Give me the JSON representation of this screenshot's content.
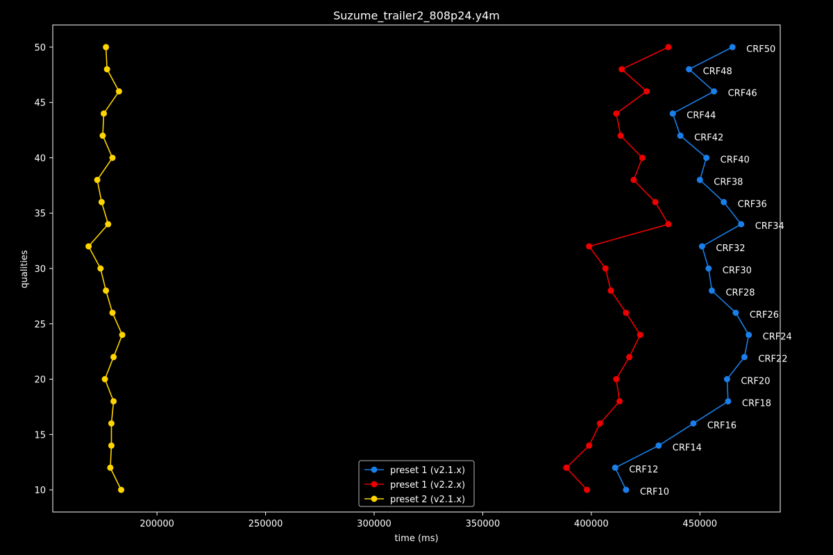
{
  "chart_data": {
    "type": "line",
    "title": "Suzume_trailer2_808p24.y4m",
    "xlabel": "time (ms)",
    "ylabel": "qualities",
    "xlim": [
      152000,
      487000
    ],
    "ylim": [
      8,
      52
    ],
    "xticks": [
      200000,
      250000,
      300000,
      350000,
      400000,
      450000
    ],
    "xtick_labels": [
      "200000",
      "250000",
      "300000",
      "350000",
      "400000",
      "450000"
    ],
    "yticks": [
      10,
      15,
      20,
      25,
      30,
      35,
      40,
      45,
      50
    ],
    "ytick_labels": [
      "10",
      "15",
      "20",
      "25",
      "30",
      "35",
      "40",
      "45",
      "50"
    ],
    "grid": false,
    "legend_position": "bottom-center",
    "series": [
      {
        "name": "preset 1 (v2.1.x)",
        "color": "#1a7fe8",
        "y": [
          10,
          12,
          14,
          16,
          18,
          20,
          22,
          24,
          26,
          28,
          30,
          32,
          34,
          36,
          38,
          40,
          42,
          44,
          46,
          48,
          50
        ],
        "x": [
          416000,
          411000,
          431000,
          447000,
          463000,
          462500,
          470500,
          472500,
          466500,
          455500,
          454000,
          451000,
          469000,
          461000,
          450000,
          453000,
          441000,
          437500,
          456500,
          445000,
          465000
        ],
        "labels": [
          "CRF10",
          "CRF12",
          "CRF14",
          "CRF16",
          "CRF18",
          "CRF20",
          "CRF22",
          "CRF24",
          "CRF26",
          "CRF28",
          "CRF30",
          "CRF32",
          "CRF34",
          "CRF36",
          "CRF38",
          "CRF40",
          "CRF42",
          "CRF44",
          "CRF46",
          "CRF48",
          "CRF50"
        ]
      },
      {
        "name": "preset 1 (v2.2.x)",
        "color": "#ee0000",
        "y": [
          10,
          12,
          14,
          16,
          18,
          20,
          22,
          24,
          26,
          28,
          30,
          32,
          34,
          36,
          38,
          40,
          42,
          44,
          46,
          48,
          50
        ],
        "x": [
          398000,
          388500,
          399000,
          404000,
          413000,
          411500,
          417500,
          422500,
          416000,
          409000,
          406500,
          399000,
          435500,
          429500,
          419500,
          423500,
          413500,
          411500,
          425500,
          414000,
          435500
        ]
      },
      {
        "name": "preset 2 (v2.1.x)",
        "color": "#ffd500",
        "y": [
          10,
          12,
          14,
          16,
          18,
          20,
          22,
          24,
          26,
          28,
          30,
          32,
          34,
          36,
          38,
          40,
          42,
          44,
          46,
          48,
          50
        ],
        "x": [
          183500,
          178500,
          179000,
          179000,
          180000,
          176000,
          180000,
          184000,
          179500,
          176500,
          174000,
          168500,
          177500,
          174500,
          172500,
          179500,
          175000,
          175500,
          182500,
          177000,
          176500
        ]
      }
    ]
  }
}
